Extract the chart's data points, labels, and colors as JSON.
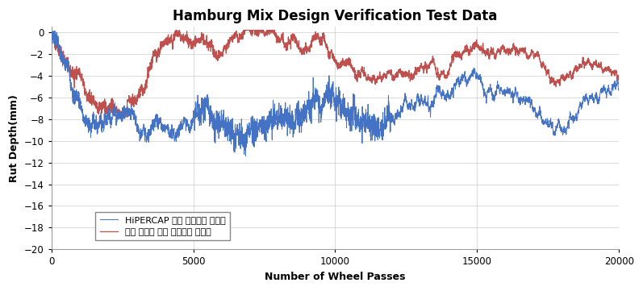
{
  "title": "Hamburg Mix Design Verification Test Data",
  "xlabel": "Number of Wheel Passes",
  "ylabel": "Rut Depth(mm)",
  "xlim": [
    0,
    20000
  ],
  "ylim": [
    -20,
    0.5
  ],
  "yticks": [
    0,
    -2,
    -4,
    -6,
    -8,
    -10,
    -12,
    -14,
    -16,
    -18,
    -20
  ],
  "xticks": [
    0,
    5000,
    10000,
    15000,
    20000
  ],
  "xtick_labels": [
    "0",
    "5000",
    "10000",
    "15000",
    "20000"
  ],
  "blue_color": "#4472C4",
  "red_color": "#C0504D",
  "legend": [
    "HiPERCAP 중온 아스팔트 혼합물",
    "가열 고분자 개질 아스팔트 혼합물"
  ],
  "title_fontsize": 12,
  "axis_label_fontsize": 9,
  "tick_fontsize": 8.5,
  "legend_fontsize": 8
}
